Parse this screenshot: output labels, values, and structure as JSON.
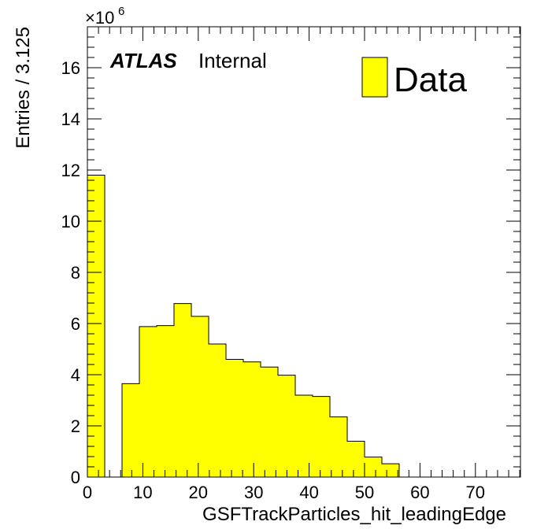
{
  "chart_data": {
    "type": "bar",
    "title": "",
    "xlabel": "GSFTrackParticles_hit_leadingEdge",
    "ylabel": "Entries / 3.125",
    "y_multiplier_base": "×10",
    "y_multiplier_exp": "6",
    "xlim": [
      0,
      78.125
    ],
    "ylim": [
      0,
      17.6
    ],
    "x_ticks": [
      0,
      10,
      20,
      30,
      40,
      50,
      60,
      70
    ],
    "x_tick_labels": [
      "0",
      "10",
      "20",
      "30",
      "40",
      "50",
      "60",
      "70"
    ],
    "y_ticks": [
      0,
      2,
      4,
      6,
      8,
      10,
      12,
      14,
      16
    ],
    "y_tick_labels": [
      "0",
      "2",
      "4",
      "6",
      "8",
      "10",
      "12",
      "14",
      "16"
    ],
    "bin_width": 3.125,
    "bin_edges": [
      0,
      3.125,
      6.25,
      9.375,
      12.5,
      15.625,
      18.75,
      21.875,
      25,
      28.125,
      31.25,
      34.375,
      37.5,
      40.625,
      43.75,
      46.875,
      50,
      53.125,
      56.25,
      59.375,
      62.5,
      65.625,
      68.75,
      71.875,
      75,
      78.125
    ],
    "values": [
      11.8,
      0,
      3.65,
      5.88,
      5.92,
      6.78,
      6.28,
      5.2,
      4.6,
      4.5,
      4.3,
      3.98,
      3.2,
      3.15,
      2.35,
      1.4,
      0.78,
      0.52,
      0,
      0,
      0,
      0,
      0,
      0,
      0
    ],
    "series_color": "#ffff00",
    "legend_placement": "top-right",
    "grid": false
  },
  "legend": {
    "label": "Data"
  },
  "atlas_label": {
    "bold": "ATLAS",
    "normal": "Internal"
  }
}
